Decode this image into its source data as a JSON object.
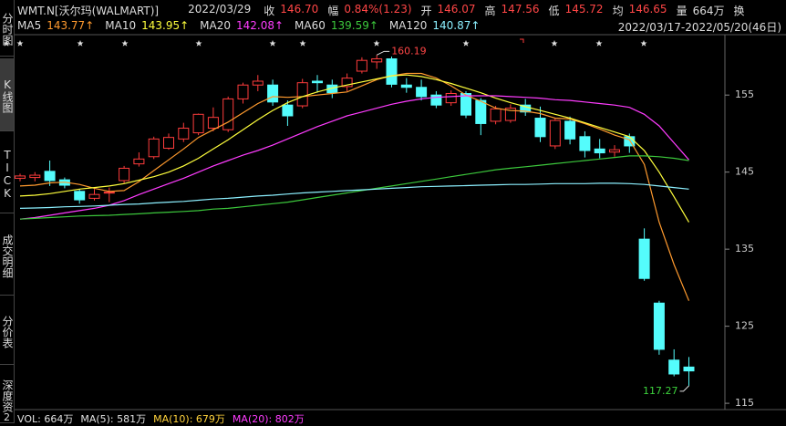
{
  "sidebar": {
    "tabs": [
      "分时图",
      "K线图",
      "TICK",
      "成交明细",
      "分价表",
      "深度资"
    ],
    "active": 1
  },
  "header": {
    "symbol": "WMT.N[沃尔玛(WALMART)]",
    "date": "2022/03/29",
    "fields": [
      {
        "label": "收",
        "value": "146.70"
      },
      {
        "label": "幅",
        "value": "0.84%(1.23)"
      },
      {
        "label": "开",
        "value": "146.07"
      },
      {
        "label": "高",
        "value": "147.56"
      },
      {
        "label": "低",
        "value": "145.72"
      },
      {
        "label": "均",
        "value": "146.65"
      },
      {
        "label": "量",
        "value": "664万"
      },
      {
        "label": "换"
      }
    ],
    "range": "2022/03/17-2022/05/20(46日)"
  },
  "chart_data": {
    "type": "candlestick",
    "up_color": "#ff3c3c",
    "down_color": "#54fcfc",
    "open": [
      144.2,
      144.3,
      145.1,
      144.0,
      142.5,
      141.6,
      142.3,
      143.9,
      146.07,
      147.0,
      148.1,
      149.3,
      150.1,
      150.7,
      150.5,
      154.5,
      156.3,
      156.3,
      153.7,
      153.6,
      156.8,
      156.3,
      156.1,
      158.1,
      159.3,
      159.7,
      156.3,
      156.0,
      155.0,
      154.0,
      155.2,
      154.3,
      151.6,
      151.7,
      153.7,
      152.0,
      148.4,
      151.6,
      149.6,
      148.0,
      147.6,
      149.6,
      136.3,
      128.0,
      120.6,
      119.7
    ],
    "high": [
      144.8,
      145.0,
      146.5,
      144.3,
      142.8,
      142.8,
      143.0,
      145.8,
      147.56,
      149.6,
      150.0,
      151.4,
      152.6,
      153.4,
      154.8,
      156.6,
      157.6,
      157.0,
      154.3,
      157.1,
      157.6,
      157.0,
      157.8,
      159.9,
      160.19,
      160.0,
      157.2,
      157.0,
      155.5,
      155.6,
      155.5,
      154.6,
      153.6,
      153.8,
      154.5,
      153.5,
      152.0,
      152.2,
      150.3,
      149.3,
      148.5,
      150.0,
      137.7,
      128.3,
      122.0,
      121.0
    ],
    "low": [
      143.8,
      143.8,
      143.2,
      142.9,
      140.9,
      141.3,
      141.1,
      143.5,
      145.72,
      146.7,
      147.9,
      148.9,
      149.8,
      150.3,
      150.2,
      153.9,
      155.5,
      153.6,
      151.0,
      153.3,
      155.3,
      154.6,
      155.5,
      157.8,
      158.4,
      156.0,
      155.3,
      154.3,
      153.3,
      153.6,
      152.0,
      149.8,
      151.2,
      151.4,
      152.3,
      148.9,
      148.0,
      148.6,
      146.9,
      146.8,
      147.0,
      147.5,
      130.9,
      121.3,
      118.5,
      117.27
    ],
    "close": [
      144.5,
      144.6,
      143.9,
      143.3,
      141.4,
      142.1,
      142.4,
      145.5,
      146.7,
      149.3,
      149.5,
      150.7,
      152.5,
      152.1,
      154.5,
      156.3,
      156.8,
      154.1,
      152.3,
      156.6,
      156.6,
      155.3,
      157.2,
      159.5,
      159.7,
      156.4,
      156.0,
      154.8,
      153.7,
      155.2,
      152.4,
      151.3,
      153.2,
      153.3,
      152.8,
      149.6,
      151.7,
      149.3,
      147.8,
      147.5,
      147.9,
      148.4,
      131.2,
      122.0,
      118.8,
      119.2
    ],
    "ylim": [
      114.3,
      162.6
    ],
    "yticks": [
      115,
      125,
      135,
      145,
      155
    ],
    "series": [
      {
        "name": "MA5",
        "color": "#ff9a2e",
        "legend_value": "143.77↑",
        "values": [
          143.2,
          143.3,
          143.6,
          143.7,
          143.4,
          142.9,
          142.5,
          142.6,
          143.77,
          145.2,
          146.6,
          148.0,
          149.5,
          150.5,
          151.5,
          152.7,
          153.9,
          154.8,
          154.7,
          154.8,
          155.0,
          155.2,
          155.4,
          156.2,
          157.0,
          157.5,
          157.8,
          157.8,
          157.2,
          156.2,
          155.0,
          154.2,
          153.3,
          153.0,
          152.9,
          152.6,
          152.0,
          151.9,
          151.3,
          150.6,
          149.8,
          149.2,
          146.0,
          138.5,
          133.0,
          128.3
        ]
      },
      {
        "name": "MA10",
        "color": "#ffff3c",
        "legend_value": "143.95↑",
        "values": [
          141.9,
          142.0,
          142.2,
          142.5,
          142.8,
          143.0,
          143.2,
          143.5,
          143.95,
          144.4,
          145.0,
          145.8,
          146.8,
          148.0,
          149.2,
          150.5,
          151.8,
          153.0,
          154.0,
          154.8,
          155.4,
          155.9,
          156.3,
          156.7,
          157.1,
          157.5,
          157.6,
          157.4,
          157.0,
          156.5,
          155.9,
          155.3,
          154.6,
          154.0,
          153.5,
          153.0,
          152.5,
          152.0,
          151.4,
          150.8,
          150.2,
          149.6,
          147.8,
          145.0,
          141.8,
          138.5
        ]
      },
      {
        "name": "MA20",
        "color": "#ff3cff",
        "legend_value": "142.08↑",
        "values": [
          138.9,
          139.1,
          139.4,
          139.7,
          140.0,
          140.3,
          140.7,
          141.3,
          142.08,
          142.8,
          143.5,
          144.2,
          145.0,
          145.8,
          146.5,
          147.2,
          147.8,
          148.5,
          149.3,
          150.1,
          150.9,
          151.6,
          152.3,
          152.8,
          153.3,
          153.8,
          154.2,
          154.5,
          154.7,
          154.8,
          154.9,
          154.9,
          154.9,
          154.8,
          154.7,
          154.6,
          154.4,
          154.3,
          154.1,
          153.9,
          153.7,
          153.4,
          152.5,
          151.0,
          148.8,
          146.6
        ]
      },
      {
        "name": "MA60",
        "color": "#3cc83c",
        "legend_value": "139.59↑",
        "values": [
          138.9,
          139.0,
          139.1,
          139.2,
          139.3,
          139.35,
          139.4,
          139.5,
          139.59,
          139.7,
          139.8,
          139.9,
          140.0,
          140.2,
          140.3,
          140.5,
          140.7,
          140.9,
          141.1,
          141.4,
          141.7,
          142.0,
          142.3,
          142.6,
          142.9,
          143.2,
          143.5,
          143.8,
          144.1,
          144.4,
          144.7,
          145.0,
          145.3,
          145.5,
          145.7,
          145.9,
          146.1,
          146.3,
          146.5,
          146.7,
          146.9,
          147.1,
          147.1,
          147.0,
          146.8,
          146.5
        ]
      },
      {
        "name": "MA120",
        "color": "#8cf0ff",
        "legend_value": "140.87↑",
        "values": [
          140.3,
          140.35,
          140.4,
          140.5,
          140.55,
          140.6,
          140.7,
          140.8,
          140.87,
          141.0,
          141.1,
          141.2,
          141.35,
          141.5,
          141.6,
          141.75,
          141.9,
          142.0,
          142.15,
          142.3,
          142.4,
          142.5,
          142.6,
          142.7,
          142.8,
          142.9,
          143.0,
          143.1,
          143.15,
          143.2,
          143.25,
          143.3,
          143.35,
          143.4,
          143.4,
          143.45,
          143.5,
          143.5,
          143.5,
          143.55,
          143.55,
          143.5,
          143.4,
          143.2,
          143.0,
          142.8
        ]
      }
    ]
  },
  "volume_pane": {
    "index": "2",
    "items": [
      {
        "text": "VOL: 664万",
        "color": "#e0e0e0"
      },
      {
        "text": "MA(5): 581万",
        "color": "#e0e0e0"
      },
      {
        "text": "MA(10): 679万",
        "color": "#ffd23c"
      },
      {
        "text": "MA(20): 802万",
        "color": "#ff3cff"
      }
    ]
  }
}
